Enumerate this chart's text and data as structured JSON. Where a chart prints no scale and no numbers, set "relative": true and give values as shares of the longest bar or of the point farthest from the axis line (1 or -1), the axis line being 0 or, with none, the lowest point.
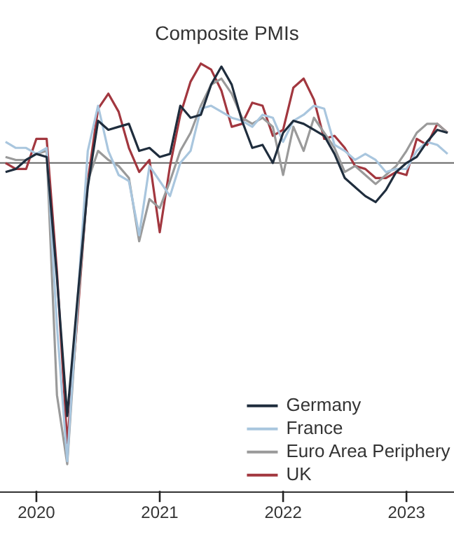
{
  "chart_data": {
    "type": "line",
    "title": "Composite PMIs",
    "relative": true,
    "legend": "bottom right",
    "marker": "none",
    "line_style": "solid",
    "grid": false,
    "x": [
      "2019-10",
      "2019-11",
      "2019-12",
      "2020-01",
      "2020-02",
      "2020-03",
      "2020-04",
      "2020-05",
      "2020-06",
      "2020-07",
      "2020-08",
      "2020-09",
      "2020-10",
      "2020-11",
      "2020-12",
      "2021-01",
      "2021-02",
      "2021-03",
      "2021-04",
      "2021-05",
      "2021-06",
      "2021-07",
      "2021-08",
      "2021-09",
      "2021-10",
      "2021-11",
      "2021-12",
      "2022-01",
      "2022-02",
      "2022-03",
      "2022-04",
      "2022-05",
      "2022-06",
      "2022-07",
      "2022-08",
      "2022-09",
      "2022-10",
      "2022-11",
      "2022-12",
      "2023-01",
      "2023-02",
      "2023-03",
      "2023-04",
      "2023-05"
    ],
    "xlim": [
      "2019-09-15",
      "2023-05-20"
    ],
    "xticks": [
      "2020",
      "2021",
      "2022",
      "2023"
    ],
    "ref_lines": [
      {
        "axis": "y",
        "value": 0,
        "color": "#666666"
      }
    ],
    "series": [
      {
        "name": "Germany",
        "color": "#1f2d3d",
        "values": [
          -0.03,
          -0.02,
          0.01,
          0.03,
          0.02,
          -0.38,
          -0.84,
          -0.45,
          -0.08,
          0.14,
          0.11,
          0.12,
          0.13,
          0.04,
          0.05,
          0.02,
          0.03,
          0.19,
          0.15,
          0.16,
          0.26,
          0.32,
          0.26,
          0.14,
          0.05,
          0.06,
          0.0,
          0.1,
          0.14,
          0.13,
          0.11,
          0.09,
          0.03,
          -0.05,
          -0.08,
          -0.11,
          -0.13,
          -0.09,
          -0.03,
          0.0,
          0.02,
          0.07,
          0.11,
          0.1
        ]
      },
      {
        "name": "France",
        "color": "#a9c6de",
        "values": [
          0.07,
          0.05,
          0.05,
          0.03,
          0.05,
          -0.54,
          -0.99,
          -0.46,
          0.04,
          0.19,
          0.04,
          -0.04,
          -0.06,
          -0.24,
          -0.01,
          -0.06,
          -0.11,
          0.0,
          0.04,
          0.18,
          0.19,
          0.17,
          0.15,
          0.14,
          0.12,
          0.16,
          0.15,
          0.07,
          0.14,
          0.16,
          0.19,
          0.18,
          0.06,
          0.04,
          0.01,
          0.03,
          0.01,
          -0.03,
          -0.02,
          -0.02,
          0.04,
          0.07,
          0.06,
          0.03
        ]
      },
      {
        "name": "Euro Area Periphery",
        "color": "#9a9a9a",
        "values": [
          0.02,
          0.01,
          0.01,
          0.03,
          0.04,
          -0.77,
          -1,
          -0.49,
          -0.06,
          0.04,
          0.01,
          -0.01,
          -0.05,
          -0.26,
          -0.12,
          -0.15,
          -0.06,
          0.04,
          0.1,
          0.19,
          0.26,
          0.28,
          0.23,
          0.15,
          0.13,
          0.15,
          0.12,
          -0.04,
          0.12,
          0.04,
          0.15,
          0.1,
          0.05,
          -0.03,
          -0.01,
          -0.04,
          -0.07,
          -0.04,
          -0.01,
          0.04,
          0.1,
          0.13,
          0.13,
          0.1
        ]
      },
      {
        "name": "UK",
        "color": "#a2373f",
        "values": [
          0.0,
          -0.02,
          -0.02,
          0.08,
          0.08,
          -0.36,
          -0.93,
          -0.51,
          -0.06,
          0.18,
          0.23,
          0.17,
          0.05,
          -0.03,
          0.01,
          -0.23,
          -0.01,
          0.16,
          0.27,
          0.33,
          0.31,
          0.24,
          0.12,
          0.13,
          0.2,
          0.19,
          0.09,
          0.11,
          0.25,
          0.28,
          0.21,
          0.08,
          0.09,
          0.05,
          -0.01,
          -0.02,
          -0.05,
          -0.05,
          -0.03,
          -0.04,
          0.08,
          0.06,
          0.13,
          0.1
        ]
      }
    ]
  }
}
